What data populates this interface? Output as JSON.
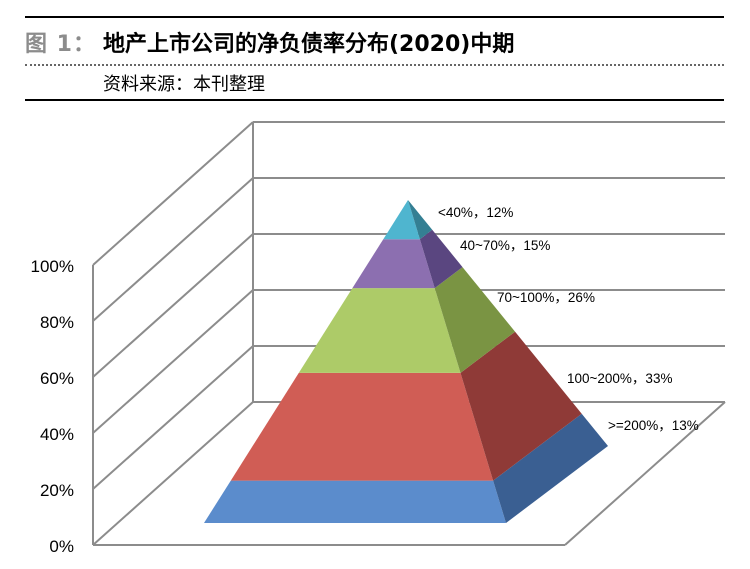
{
  "figure": {
    "label": "图 1：",
    "title": "地产上市公司的净负债率分布(2020)中期",
    "source": "资料来源：本刊整理"
  },
  "chart_data": {
    "type": "pyramid",
    "y_ticks": [
      "0%",
      "20%",
      "40%",
      "60%",
      "80%",
      "100%"
    ],
    "ylim": [
      0,
      100
    ],
    "segments": [
      {
        "label": ">=200%，13%",
        "category": ">=200%",
        "value": 13,
        "front": "#5b8ccc",
        "side": "#3a5f92"
      },
      {
        "label": "100~200%，33%",
        "category": "100~200%",
        "value": 33,
        "front": "#d05d55",
        "side": "#8f3a37"
      },
      {
        "label": "70~100%，26%",
        "category": "70~100%",
        "value": 26,
        "front": "#adcb68",
        "side": "#7a9443"
      },
      {
        "label": "40~70%，15%",
        "category": "40~70%",
        "value": 15,
        "front": "#8c6fb0",
        "side": "#5a4680"
      },
      {
        "label": "<40%，12%",
        "category": "<40%",
        "value": 12,
        "front": "#4fb5cf",
        "side": "#347f93"
      }
    ]
  }
}
